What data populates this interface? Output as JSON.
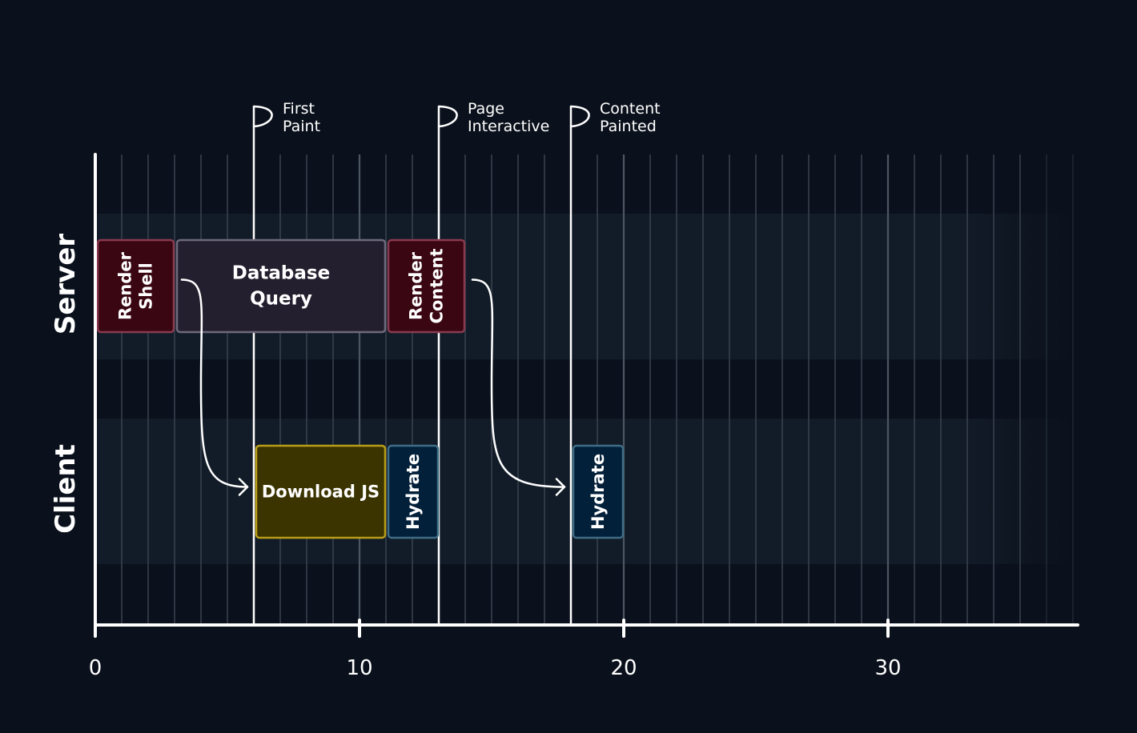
{
  "colors": {
    "background": "#0b111c",
    "lane_fill": "#121c28",
    "grid": "#3c4652",
    "grid_major": "#4c5662",
    "axis": "#ffffff",
    "server_bar_fill": "#3a0612",
    "server_bar_stroke": "#8a3a50",
    "query_bar_fill": "#231f2e",
    "query_bar_stroke": "#6e6a7c",
    "download_bar_fill": "#3c3400",
    "download_bar_stroke": "#b89e16",
    "hydrate_bar_fill": "#03203a",
    "hydrate_bar_stroke": "#3e6c86",
    "text": "#ffffff"
  },
  "x_axis": {
    "min": 0,
    "max": 37,
    "ticks": [
      0,
      10,
      20,
      30
    ],
    "tick_labels": [
      "0",
      "10",
      "20",
      "30"
    ]
  },
  "lanes": [
    {
      "id": "server",
      "label": "Server"
    },
    {
      "id": "client",
      "label": "Client"
    }
  ],
  "markers": [
    {
      "id": "first-paint",
      "time": 6,
      "label": [
        "First",
        "Paint"
      ]
    },
    {
      "id": "page-interactive",
      "time": 13,
      "label": [
        "Page",
        "Interactive"
      ]
    },
    {
      "id": "content-painted",
      "time": 18,
      "label": [
        "Content",
        "Painted"
      ]
    }
  ],
  "tasks": [
    {
      "id": "render-shell",
      "lane": "server",
      "start": 0,
      "end": 3,
      "label": [
        "Render",
        "Shell"
      ],
      "vertical": true,
      "style": "server"
    },
    {
      "id": "database-query",
      "lane": "server",
      "start": 3,
      "end": 11,
      "label": [
        "Database",
        "Query"
      ],
      "vertical": false,
      "style": "query"
    },
    {
      "id": "render-content",
      "lane": "server",
      "start": 11,
      "end": 14,
      "label": [
        "Render",
        "Content"
      ],
      "vertical": true,
      "style": "server"
    },
    {
      "id": "download-js",
      "lane": "client",
      "start": 6,
      "end": 11,
      "label": [
        "Download JS"
      ],
      "vertical": false,
      "style": "download"
    },
    {
      "id": "hydrate-1",
      "lane": "client",
      "start": 11,
      "end": 13,
      "label": [
        "Hydrate"
      ],
      "vertical": true,
      "style": "hydrate"
    },
    {
      "id": "hydrate-2",
      "lane": "client",
      "start": 18,
      "end": 20,
      "label": [
        "Hydrate"
      ],
      "vertical": true,
      "style": "hydrate"
    }
  ],
  "arrows": [
    {
      "id": "shell-to-download",
      "from_task": "render-shell",
      "to_task": "download-js"
    },
    {
      "id": "content-to-hydrate",
      "from_task": "render-content",
      "to_task": "hydrate-2"
    }
  ]
}
